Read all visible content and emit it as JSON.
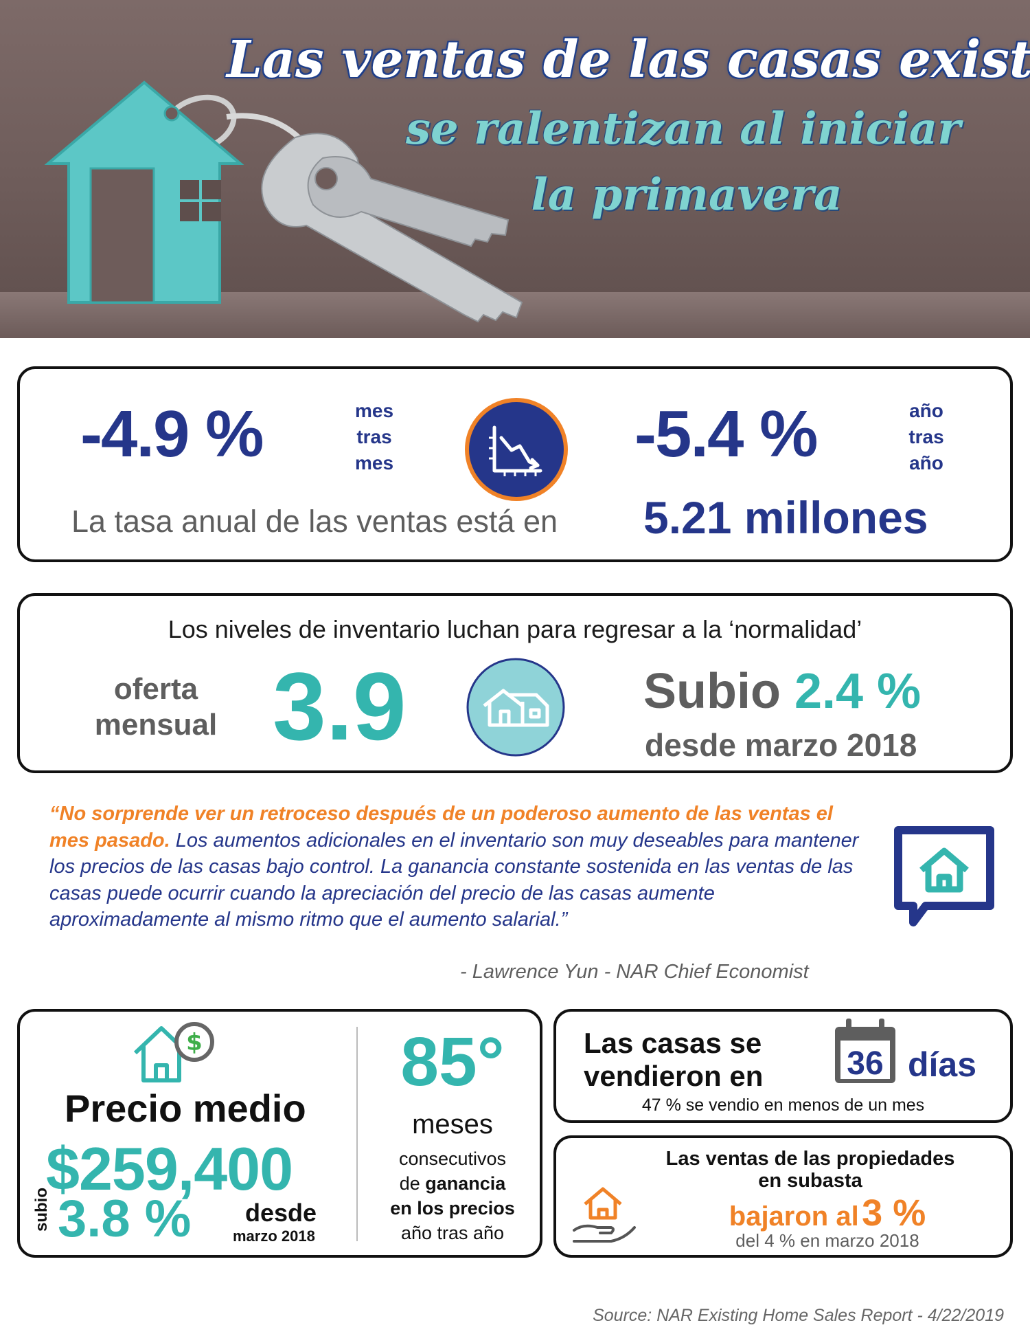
{
  "header": {
    "title_line1": "Las ventas de las casas existentes",
    "title_line2": "se ralentizan al iniciar",
    "title_line3": "la primavera"
  },
  "sales": {
    "mom_value": "-4.9 %",
    "mom_label": [
      "mes",
      "tras",
      "mes"
    ],
    "yoy_value": "-5.4 %",
    "yoy_label": [
      "año",
      "tras",
      "año"
    ],
    "annual_text": "La tasa anual de las ventas está en",
    "annual_value": "5.21 millones",
    "icon": "chart-down-icon"
  },
  "inventory": {
    "heading": "Los niveles de inventario luchan para regresar a la ‘normalidad’",
    "supply_label_1": "oferta",
    "supply_label_2": "mensual",
    "supply_value": "3.9",
    "up_word": "Subio",
    "up_value": "2.4 %",
    "since": "desde marzo 2018",
    "icon": "house-icon"
  },
  "quote": {
    "highlight": "“No sorprende ver un retroceso después de un poderoso aumento de las ventas el mes pasado.",
    "rest": " Los aumentos adicionales en el inventario son muy deseables para mantener los precios de las casas bajo control. La ganancia constante sostenida en las ventas de las casas puede ocurrir cuando la apreciación del precio de las casas aumente aproximadamente al mismo ritmo que el aumento salarial.”",
    "author": "- Lawrence Yun - NAR Chief Economist",
    "icon": "speech-house-icon"
  },
  "price": {
    "label": "Precio medio",
    "value": "$259,400",
    "rise_word": "subio",
    "rise_value": "3.8 %",
    "since_1": "desde",
    "since_2": "marzo 2018",
    "icon": "house-dollar-icon"
  },
  "streak": {
    "value": "85°",
    "unit": "meses",
    "line1": "consecutivos",
    "line2_a": "de ",
    "line2_b": "ganancia",
    "line3": "en los precios",
    "line4": "año tras año"
  },
  "days": {
    "line1": "Las casas se",
    "line2": "vendieron en",
    "value": "36",
    "unit": "días",
    "note": "47 % se vendio en menos de un mes",
    "icon": "calendar-icon"
  },
  "distressed": {
    "line1": "Las ventas de las propiedades",
    "line2": "en subasta",
    "fell": "bajaron al",
    "value": "3 %",
    "from": "del 4 % en marzo 2018",
    "icon": "hand-house-icon"
  },
  "footer": {
    "source": "Source: NAR Existing Home Sales Report - 4/22/2019"
  },
  "colors": {
    "navy": "#25368a",
    "teal": "#34b5ae",
    "orange": "#f08227",
    "grey": "#5e5e5e"
  }
}
